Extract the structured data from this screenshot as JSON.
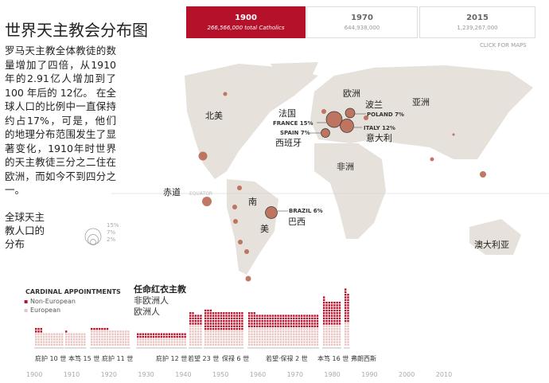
{
  "title": "世界天主教会分布图",
  "intro": "罗马天主教全体教徒的数量增加了四倍，从1910年的2.91亿人增加到了 100 年后的 12亿。 在全球人口的比例中一直保持约占17%，可是，他们的地理分布范围发生了显著变化，1910年时世界的天主教徒三分之二住在欧洲，而如今不到四分之一。",
  "tabs": [
    {
      "year": "1900",
      "value": "266,566,000 total Catholics",
      "active": true
    },
    {
      "year": "1970",
      "value": "644,938,000"
    },
    {
      "year": "2015",
      "value": "1,239,267,000"
    }
  ],
  "click_for_maps": "CLICK FOR MAPS",
  "map": {
    "labels": {
      "north_america": "北美",
      "europe": "欧洲",
      "asia": "亚洲",
      "africa": "非洲",
      "south": "南",
      "america": "美",
      "australia": "澳大利亚",
      "equator_cn": "赤道",
      "equator": "EQUATOR",
      "france_cn": "法国",
      "spain_cn": "西班牙",
      "italy_cn": "意大利",
      "poland_cn": "波兰",
      "brazil_cn": "巴西"
    },
    "countries": [
      {
        "name": "FRANCE 15%",
        "pct": 15
      },
      {
        "name": "SPAIN 7%",
        "pct": 7
      },
      {
        "name": "ITALY 12%",
        "pct": 12
      },
      {
        "name": "POLAND 7%",
        "pct": 7
      },
      {
        "name": "BRAZIL 6%",
        "pct": 6
      }
    ],
    "legend_title": "全球天主教人口的分布",
    "legend_sizes": [
      "15%",
      "7%",
      "2%"
    ],
    "bubble_color": "#b5604a",
    "land_color": "#e6e1da"
  },
  "cardinals": {
    "title_en": "CARDINAL APPOINTMENTS",
    "title_cn": "任命红衣主教",
    "non_european": "Non-European",
    "european": "European",
    "non_european_cn": "非欧洲人",
    "european_cn": "欧洲人",
    "non_color": "#b5112a",
    "eu_color": "#e8c4c0",
    "popes": [
      "庇护 10 世",
      "本笃 15 世",
      "庇护 11 世",
      "庇护 12 世",
      "若望 23 世",
      "保禄 6 世",
      "若望·保禄 2 世",
      "本笃 16 世",
      "弗朗西斯"
    ],
    "groups": [
      {
        "cols": 11,
        "eu": 5,
        "non": 0,
        "lead": 3,
        "lead_non": 2
      },
      {
        "cols": 8,
        "eu": 5,
        "non": 0,
        "lead": 1,
        "lead_non": 1
      },
      {
        "cols": 15,
        "eu": 6,
        "non": 0,
        "lead": 7,
        "lead_non": 1
      },
      {
        "cols": 19,
        "eu": 3,
        "non": 2,
        "lead": 1,
        "lead_non": 0
      },
      {
        "cols": 5,
        "eu": 8,
        "non": 4,
        "lead": 2,
        "lead_non": 1
      },
      {
        "cols": 15,
        "eu": 6,
        "non": 7,
        "lead": 3,
        "lead_non": 1
      },
      {
        "cols": 27,
        "eu": 7,
        "non": 5,
        "lead": 3,
        "lead_non": 1
      },
      {
        "cols": 7,
        "eu": 8,
        "non": 9,
        "lead": 1,
        "lead_non": 2
      },
      {
        "cols": 2,
        "eu": 9,
        "non": 11,
        "lead": 1,
        "lead_non": 2
      }
    ],
    "years": [
      "1900",
      "1910",
      "1920",
      "1930",
      "1940",
      "1950",
      "1960",
      "1970",
      "1980",
      "1990",
      "2000",
      "2010"
    ]
  }
}
